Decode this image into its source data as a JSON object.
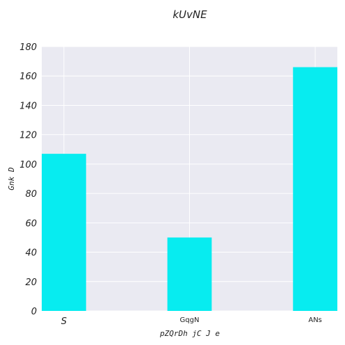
{
  "chart_data": {
    "type": "bar",
    "title": "kUvNE",
    "xlabel": "pZQrDh jC J e",
    "ylabel": "Gnk  D",
    "categories": [
      "S",
      "GqgN",
      "ANs"
    ],
    "values": [
      107,
      50,
      166
    ],
    "ylim": [
      0,
      180
    ],
    "yticks": [
      "0",
      "20",
      "40",
      "60",
      "80",
      "100",
      "120",
      "140",
      "160",
      "180"
    ],
    "grid": true,
    "legend": "none",
    "bar_color": "#07ecf0",
    "background_color": "#eaeaf2",
    "grid_color": "#ffffff"
  }
}
